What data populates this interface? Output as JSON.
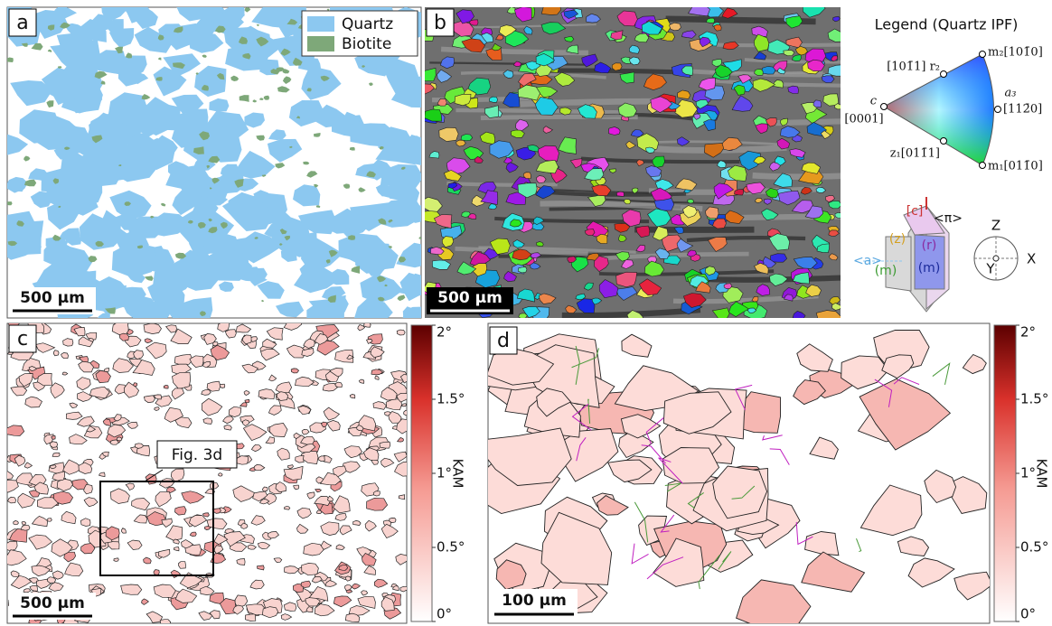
{
  "panel_a": {
    "label": "a",
    "legend": [
      "Quartz",
      "Biotite"
    ],
    "scale_bar": "500 μm"
  },
  "panel_b": {
    "label": "b",
    "scale_bar": "500 μm"
  },
  "ipf_legend": {
    "title": "Legend (Quartz IPF)",
    "poles": {
      "m2": "m₂[101̄0]",
      "r2": "[101̄1] r₂",
      "c": "c",
      "c_index": "[0001]",
      "a3": "a₃",
      "a3_index": "[112̄0]",
      "z1": "z₁[011̄1]",
      "m1": "m₁[011̄0]"
    },
    "crystal": {
      "c": "[c]",
      "pi": "<π>",
      "z": "(z)",
      "r": "(r)",
      "a": "<a>",
      "m_left": "(m)",
      "m_front": "(m)"
    },
    "axes": {
      "z": "Z",
      "x": "X",
      "y": "Y"
    }
  },
  "panel_c": {
    "label": "c",
    "scale_bar": "500 μm",
    "inset": "Fig. 3d"
  },
  "panel_d": {
    "label": "d",
    "scale_bar": "100 μm"
  },
  "colorbar": {
    "label": "KAM",
    "lim": [
      0,
      2
    ],
    "ticks": [
      {
        "value": 0,
        "label": "0°"
      },
      {
        "value": 0.5,
        "label": "0.5°"
      },
      {
        "value": 1,
        "label": "1°"
      },
      {
        "value": 1.5,
        "label": "1.5°"
      },
      {
        "value": 2,
        "label": "2°"
      }
    ]
  }
}
